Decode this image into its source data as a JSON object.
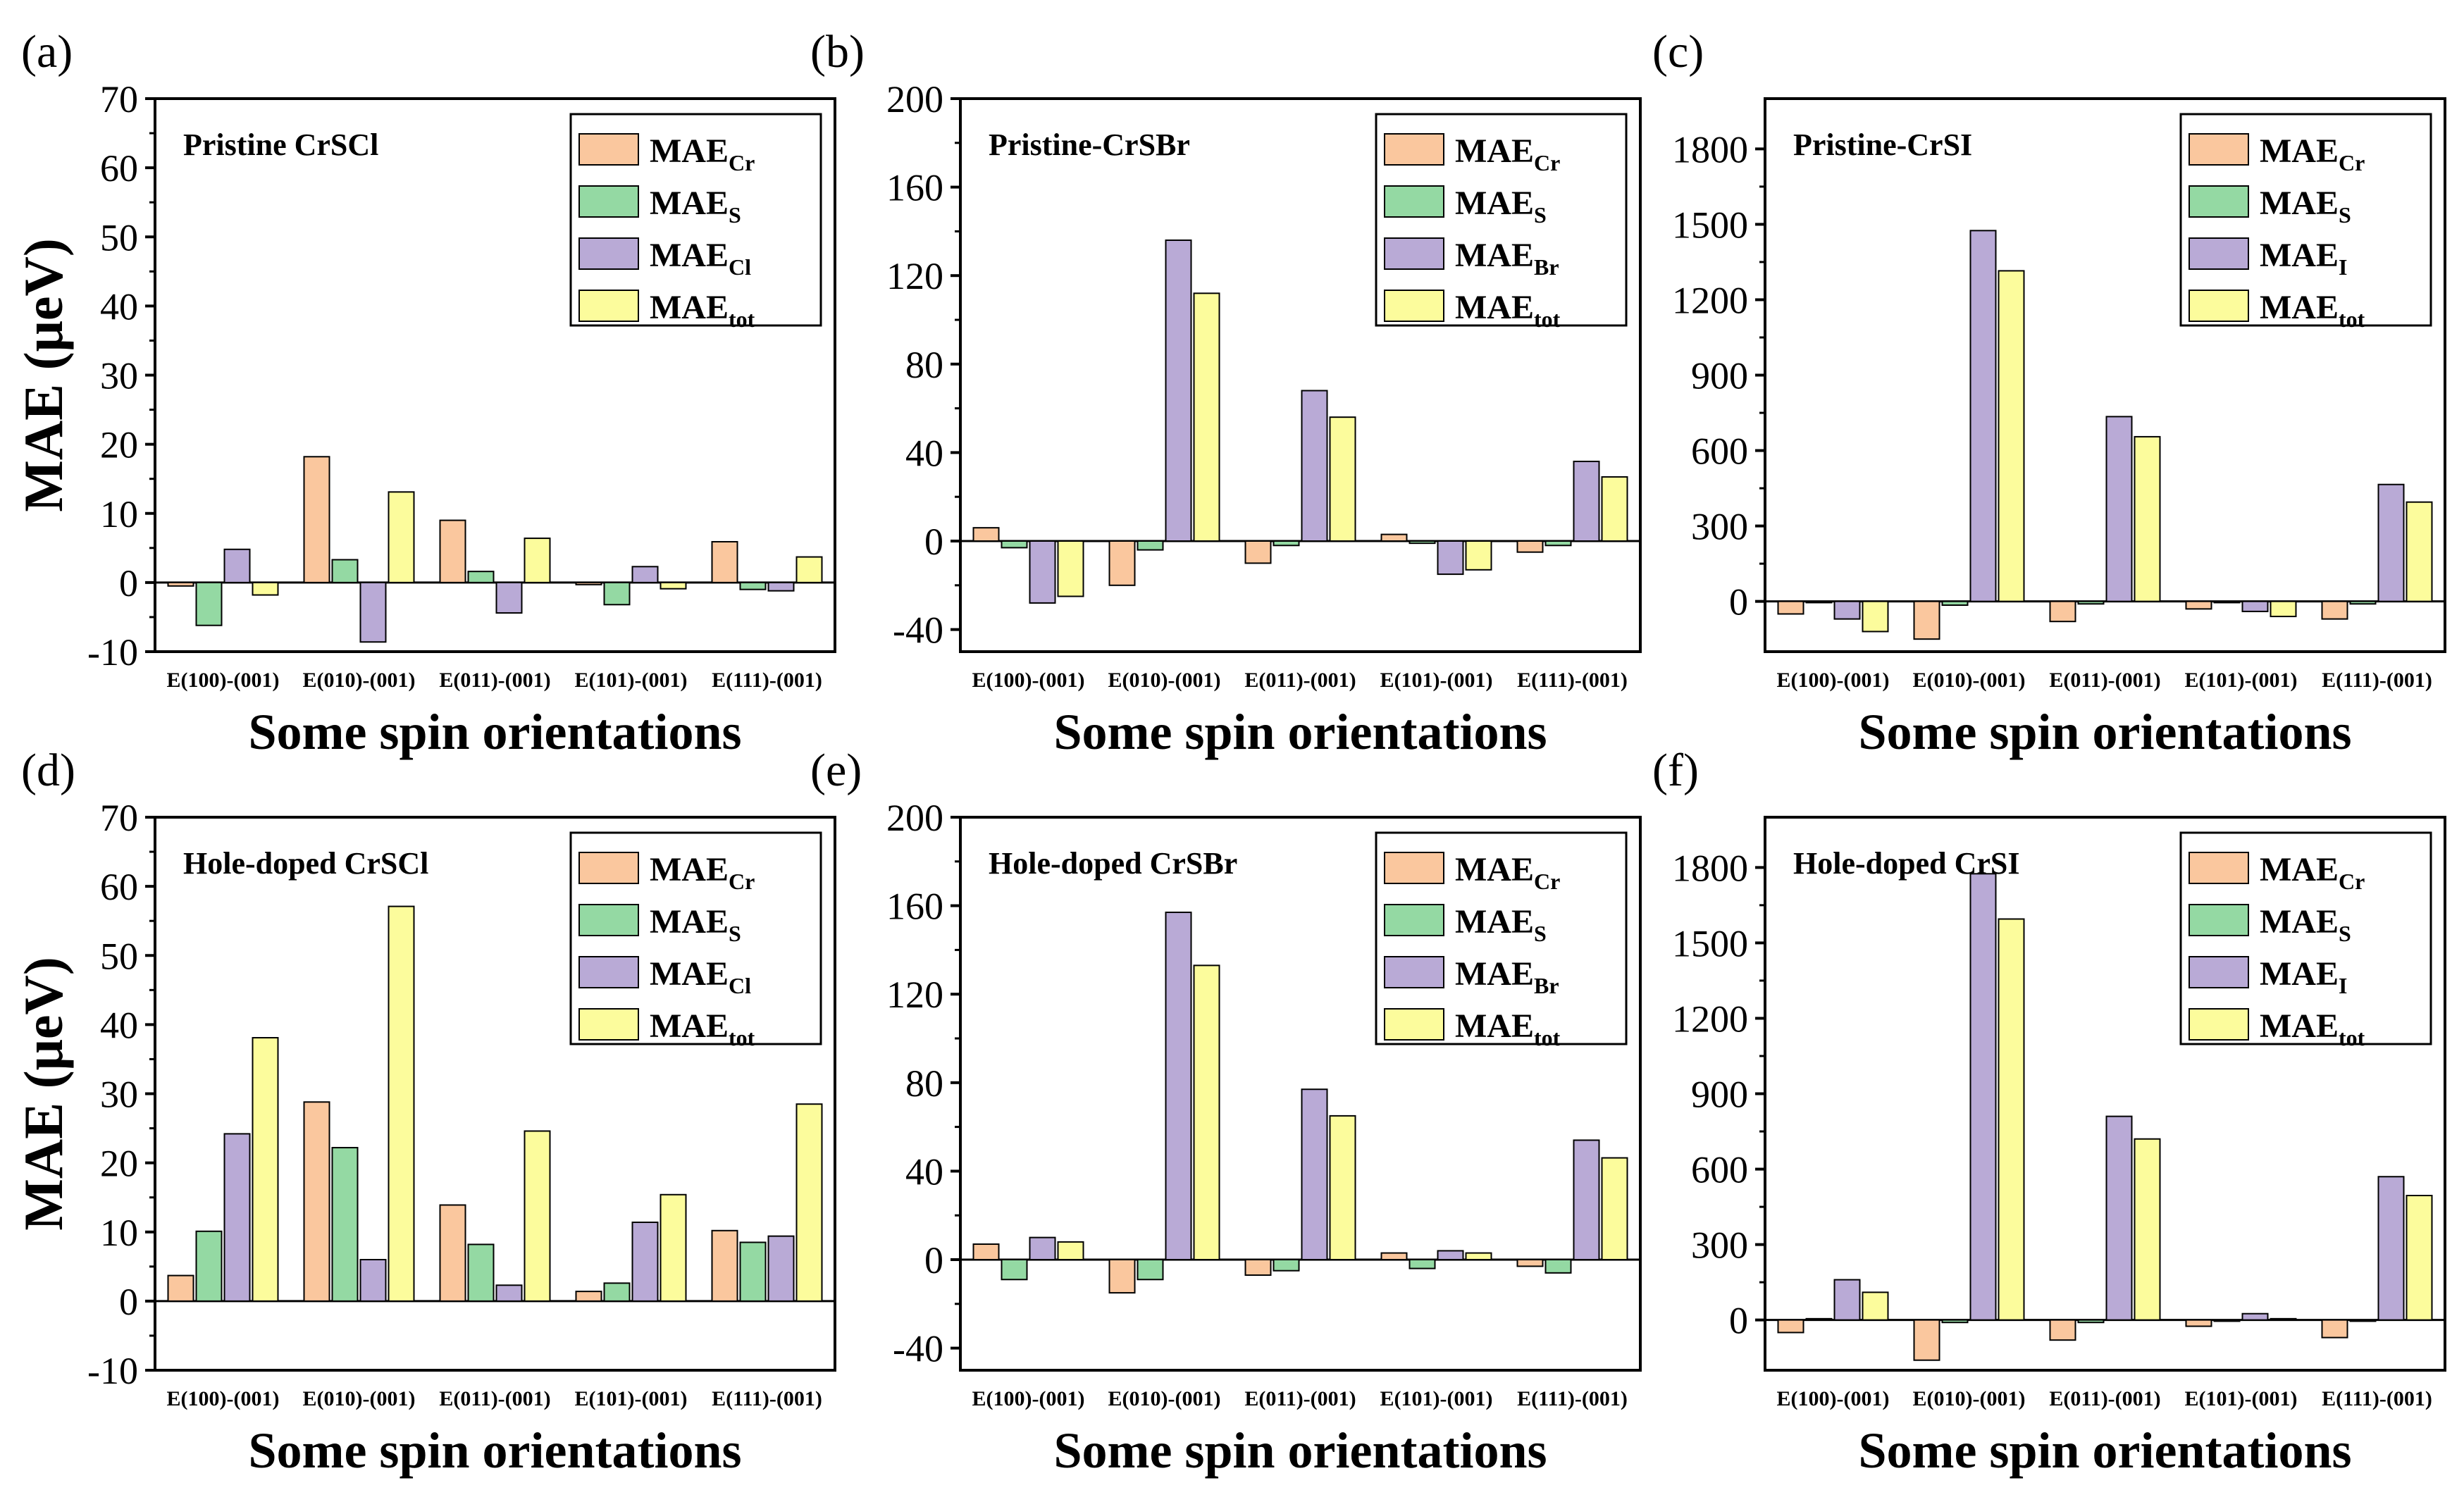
{
  "colors": {
    "Cr": "#fac79e",
    "S": "#94d9a3",
    "X": "#b9aad6",
    "tot": "#fcfc9c",
    "edge": "#000000",
    "background": "#ffffff"
  },
  "common": {
    "ylabel": "MAE (μeV)",
    "xlabel": "Some spin orientations",
    "categories": [
      "E(100)-(001)",
      "E(010)-(001)",
      "E(011)-(001)",
      "E(101)-(001)",
      "E(111)-(001)"
    ]
  },
  "chart_data": [
    {
      "panel": "(a)",
      "type": "bar",
      "title": "Pristine CrSCl",
      "ylim": [
        -10,
        70
      ],
      "yticks": [
        -10,
        0,
        10,
        20,
        30,
        40,
        50,
        60,
        70
      ],
      "show_ylabel": true,
      "legend": [
        {
          "base": "MAE",
          "sub": "Cr"
        },
        {
          "base": "MAE",
          "sub": "S"
        },
        {
          "base": "MAE",
          "sub": "Cl"
        },
        {
          "base": "MAE",
          "sub": "tot"
        }
      ],
      "series": [
        {
          "name": "MAE_Cr",
          "key": "Cr",
          "values": [
            -0.5,
            18.2,
            9.0,
            -0.3,
            5.9
          ]
        },
        {
          "name": "MAE_S",
          "key": "S",
          "values": [
            -6.2,
            3.3,
            1.6,
            -3.2,
            -1.0
          ]
        },
        {
          "name": "MAE_Cl",
          "key": "X",
          "values": [
            4.8,
            -8.6,
            -4.4,
            2.3,
            -1.2
          ]
        },
        {
          "name": "MAE_tot",
          "key": "tot",
          "values": [
            -1.8,
            13.1,
            6.4,
            -0.9,
            3.7
          ]
        }
      ]
    },
    {
      "panel": "(b)",
      "type": "bar",
      "title": "Pristine-CrSBr",
      "ylim": [
        -50,
        200
      ],
      "yticks": [
        -40,
        0,
        40,
        80,
        120,
        160,
        200
      ],
      "show_ylabel": false,
      "legend": [
        {
          "base": "MAE",
          "sub": "Cr"
        },
        {
          "base": "MAE",
          "sub": "S"
        },
        {
          "base": "MAE",
          "sub": "Br"
        },
        {
          "base": "MAE",
          "sub": "tot"
        }
      ],
      "series": [
        {
          "name": "MAE_Cr",
          "key": "Cr",
          "values": [
            6,
            -20,
            -10,
            3,
            -5
          ]
        },
        {
          "name": "MAE_S",
          "key": "S",
          "values": [
            -3,
            -4,
            -2,
            -1,
            -2
          ]
        },
        {
          "name": "MAE_Br",
          "key": "X",
          "values": [
            -28,
            136,
            68,
            -15,
            36
          ]
        },
        {
          "name": "MAE_tot",
          "key": "tot",
          "values": [
            -25,
            112,
            56,
            -13,
            29
          ]
        }
      ]
    },
    {
      "panel": "(c)",
      "type": "bar",
      "title": "Pristine-CrSI",
      "ylim": [
        -200,
        2000
      ],
      "yticks": [
        0,
        300,
        600,
        900,
        1200,
        1500,
        1800
      ],
      "show_ylabel": false,
      "legend": [
        {
          "base": "MAE",
          "sub": "Cr"
        },
        {
          "base": "MAE",
          "sub": "S"
        },
        {
          "base": "MAE",
          "sub": "I"
        },
        {
          "base": "MAE",
          "sub": "tot"
        }
      ],
      "series": [
        {
          "name": "MAE_Cr",
          "key": "Cr",
          "values": [
            -50,
            -150,
            -80,
            -30,
            -70
          ]
        },
        {
          "name": "MAE_S",
          "key": "S",
          "values": [
            -5,
            -15,
            -10,
            -5,
            -10
          ]
        },
        {
          "name": "MAE_I",
          "key": "X",
          "values": [
            -70,
            1475,
            735,
            -40,
            465
          ]
        },
        {
          "name": "MAE_tot",
          "key": "tot",
          "values": [
            -120,
            1315,
            655,
            -60,
            395
          ]
        }
      ]
    },
    {
      "panel": "(d)",
      "type": "bar",
      "title": "Hole-doped CrSCl",
      "ylim": [
        -10,
        70
      ],
      "yticks": [
        -10,
        0,
        10,
        20,
        30,
        40,
        50,
        60,
        70
      ],
      "show_ylabel": true,
      "legend": [
        {
          "base": "MAE",
          "sub": "Cr"
        },
        {
          "base": "MAE",
          "sub": "S"
        },
        {
          "base": "MAE",
          "sub": "Cl"
        },
        {
          "base": "MAE",
          "sub": "tot"
        }
      ],
      "series": [
        {
          "name": "MAE_Cr",
          "key": "Cr",
          "values": [
            3.7,
            28.8,
            13.9,
            1.4,
            10.2
          ]
        },
        {
          "name": "MAE_S",
          "key": "S",
          "values": [
            10.1,
            22.2,
            8.2,
            2.6,
            8.5
          ]
        },
        {
          "name": "MAE_Cl",
          "key": "X",
          "values": [
            24.2,
            6.0,
            2.3,
            11.4,
            9.4
          ]
        },
        {
          "name": "MAE_tot",
          "key": "tot",
          "values": [
            38.1,
            57.1,
            24.6,
            15.4,
            28.5
          ]
        }
      ]
    },
    {
      "panel": "(e)",
      "type": "bar",
      "title": "Hole-doped CrSBr",
      "ylim": [
        -50,
        200
      ],
      "yticks": [
        -40,
        0,
        40,
        80,
        120,
        160,
        200
      ],
      "show_ylabel": false,
      "legend": [
        {
          "base": "MAE",
          "sub": "Cr"
        },
        {
          "base": "MAE",
          "sub": "S"
        },
        {
          "base": "MAE",
          "sub": "Br"
        },
        {
          "base": "MAE",
          "sub": "tot"
        }
      ],
      "series": [
        {
          "name": "MAE_Cr",
          "key": "Cr",
          "values": [
            7,
            -15,
            -7,
            3,
            -3
          ]
        },
        {
          "name": "MAE_S",
          "key": "S",
          "values": [
            -9,
            -9,
            -5,
            -4,
            -6
          ]
        },
        {
          "name": "MAE_Br",
          "key": "X",
          "values": [
            10,
            157,
            77,
            4,
            54
          ]
        },
        {
          "name": "MAE_tot",
          "key": "tot",
          "values": [
            8,
            133,
            65,
            3,
            46
          ]
        }
      ]
    },
    {
      "panel": "(f)",
      "type": "bar",
      "title": "Hole-doped CrSI",
      "ylim": [
        -200,
        2000
      ],
      "yticks": [
        0,
        300,
        600,
        900,
        1200,
        1500,
        1800
      ],
      "show_ylabel": false,
      "legend": [
        {
          "base": "MAE",
          "sub": "Cr"
        },
        {
          "base": "MAE",
          "sub": "S"
        },
        {
          "base": "MAE",
          "sub": "I"
        },
        {
          "base": "MAE",
          "sub": "tot"
        }
      ],
      "series": [
        {
          "name": "MAE_Cr",
          "key": "Cr",
          "values": [
            -50,
            -160,
            -80,
            -25,
            -70
          ]
        },
        {
          "name": "MAE_S",
          "key": "S",
          "values": [
            5,
            -10,
            -10,
            -5,
            -5
          ]
        },
        {
          "name": "MAE_I",
          "key": "X",
          "values": [
            160,
            1775,
            810,
            25,
            570
          ]
        },
        {
          "name": "MAE_tot",
          "key": "tot",
          "values": [
            110,
            1595,
            720,
            5,
            495
          ]
        }
      ]
    }
  ]
}
